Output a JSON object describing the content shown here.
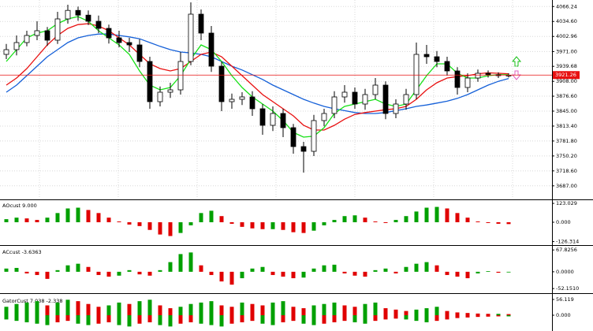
{
  "chart_data": [
    {
      "type": "candlestick",
      "open": [
        3965,
        3975,
        3990,
        4005,
        4015,
        3995,
        4040,
        4058,
        4048,
        4035,
        4020,
        4000,
        3990,
        3985,
        3950,
        3865,
        3885,
        3890,
        3950,
        4050,
        4010,
        3940,
        3865,
        3870,
        3875,
        3850,
        3815,
        3840,
        3810,
        3770,
        3760,
        3825,
        3840,
        3875,
        3885,
        3860,
        3880,
        3900,
        3840,
        3860,
        3880,
        3965,
        3960,
        3950,
        3930,
        3895,
        3915,
        3925,
        3922,
        3920
      ],
      "high": [
        3987,
        4005,
        4015,
        4035,
        4023,
        4055,
        4070,
        4066,
        4058,
        4047,
        4028,
        4015,
        4000,
        3997,
        3960,
        3897,
        3905,
        3970,
        4075,
        4060,
        4025,
        3950,
        3882,
        3885,
        3887,
        3860,
        3855,
        3850,
        3818,
        3780,
        3837,
        3850,
        3887,
        3900,
        3895,
        3892,
        3915,
        3908,
        3870,
        3892,
        3990,
        3985,
        3972,
        3960,
        3938,
        3925,
        3933,
        3931,
        3927,
        3925
      ],
      "low": [
        3955,
        3963,
        3982,
        3995,
        3983,
        3987,
        4030,
        4036,
        4027,
        4010,
        3988,
        3980,
        3970,
        3938,
        3850,
        3855,
        3873,
        3880,
        3942,
        3995,
        3928,
        3845,
        3850,
        3858,
        3835,
        3795,
        3803,
        3790,
        3755,
        3715,
        3750,
        3813,
        3830,
        3863,
        3850,
        3848,
        3870,
        3828,
        3830,
        3848,
        3870,
        3945,
        3938,
        3920,
        3880,
        3885,
        3907,
        3916,
        3915,
        3916
      ],
      "close": [
        3975,
        3990,
        4005,
        4015,
        3995,
        4040,
        4058,
        4048,
        4035,
        4020,
        4000,
        3990,
        3985,
        3950,
        3865,
        3885,
        3890,
        3950,
        4050,
        4010,
        3940,
        3865,
        3870,
        3875,
        3850,
        3815,
        3840,
        3810,
        3770,
        3760,
        3825,
        3840,
        3875,
        3885,
        3860,
        3880,
        3900,
        3840,
        3860,
        3880,
        3965,
        3960,
        3950,
        3930,
        3895,
        3915,
        3925,
        3922,
        3920,
        3921
      ],
      "up_color": "#ffffff",
      "down_color": "#000000",
      "series": [
        {
          "color": "#1560d8",
          "values": [
            3885,
            3900,
            3920,
            3940,
            3960,
            3975,
            3990,
            4000,
            4005,
            4008,
            4008,
            4005,
            4002,
            3998,
            3990,
            3982,
            3975,
            3970,
            3968,
            3965,
            3960,
            3950,
            3940,
            3932,
            3922,
            3912,
            3900,
            3890,
            3880,
            3870,
            3862,
            3855,
            3850,
            3846,
            3842,
            3840,
            3840,
            3842,
            3846,
            3850,
            3855,
            3858,
            3862,
            3866,
            3872,
            3880,
            3890,
            3900,
            3908,
            3914
          ]
        },
        {
          "color": "#e81010",
          "values": [
            3900,
            3915,
            3935,
            3960,
            3985,
            4005,
            4020,
            4028,
            4030,
            4025,
            4015,
            4000,
            3985,
            3965,
            3945,
            3935,
            3930,
            3935,
            3950,
            3965,
            3970,
            3960,
            3940,
            3920,
            3900,
            3880,
            3865,
            3850,
            3835,
            3815,
            3805,
            3805,
            3815,
            3828,
            3838,
            3842,
            3845,
            3848,
            3850,
            3855,
            3870,
            3890,
            3905,
            3915,
            3918,
            3920,
            3924,
            3926,
            3925,
            3924
          ]
        },
        {
          "color": "#16e016",
          "values": [
            3950,
            3975,
            4000,
            4010,
            4015,
            4030,
            4040,
            4045,
            4035,
            4015,
            4000,
            3985,
            3965,
            3930,
            3900,
            3890,
            3895,
            3920,
            3955,
            3985,
            3975,
            3950,
            3920,
            3895,
            3875,
            3860,
            3845,
            3825,
            3800,
            3790,
            3792,
            3810,
            3840,
            3855,
            3860,
            3865,
            3870,
            3860,
            3855,
            3860,
            3890,
            3920,
            3945,
            3945,
            3925,
            3915,
            3915,
            3920,
            3922,
            3922
          ]
        }
      ],
      "last_price": 3921.26,
      "last_price_color": "#e81010",
      "ylim": [
        3660,
        4080
      ],
      "yticks": [
        4066.24,
        {
          "value": 4034.6,
          "label": "4034.60"
        },
        4002.96,
        {
          "value": 3971,
          "label": "3971.00"
        },
        3939.68,
        {
          "value": 3908,
          "label": "3908.00"
        },
        {
          "value": 3876.6,
          "label": "3876.60"
        },
        {
          "value": 3845,
          "label": "3845.00"
        },
        {
          "value": 3813.4,
          "label": "3813.40"
        },
        {
          "value": 3781.8,
          "label": "3781.80"
        },
        {
          "value": 3750.2,
          "label": "3750.20"
        },
        {
          "value": 3718.6,
          "label": "3718.60"
        },
        {
          "value": 3687,
          "label": "3687.00"
        }
      ],
      "grid": true
    },
    {
      "type": "bar",
      "title": "AOcust 9.000",
      "values": [
        20,
        30,
        25,
        15,
        30,
        60,
        90,
        95,
        80,
        60,
        30,
        5,
        -15,
        -25,
        -50,
        -80,
        -90,
        -70,
        -20,
        60,
        75,
        40,
        -10,
        -30,
        -40,
        -45,
        -45,
        -50,
        -65,
        -70,
        -55,
        -20,
        15,
        40,
        45,
        30,
        5,
        -5,
        15,
        40,
        70,
        95,
        100,
        90,
        60,
        30,
        5,
        -5,
        -10,
        -12
      ],
      "up_color": "#00a000",
      "down_color": "#e00000",
      "ylim": [
        -144,
        144
      ],
      "yticks": [
        123.029,
        {
          "value": 0,
          "label": "0.000"
        },
        -126.314
      ]
    },
    {
      "type": "bar",
      "title": "ACcust -3.6363",
      "values": [
        10,
        12,
        -5,
        -10,
        -22,
        5,
        20,
        25,
        15,
        -10,
        -15,
        -12,
        5,
        -8,
        -12,
        5,
        30,
        55,
        60,
        20,
        -10,
        -30,
        -40,
        -20,
        10,
        15,
        -10,
        -15,
        -20,
        -18,
        10,
        20,
        22,
        -5,
        -12,
        -15,
        5,
        10,
        -5,
        15,
        25,
        30,
        20,
        -10,
        -15,
        -20,
        -5,
        2,
        -3,
        -2
      ],
      "up_color": "#00a000",
      "down_color": "#e00000",
      "ylim": [
        -64,
        78
      ],
      "yticks": [
        67.8256,
        {
          "value": 0,
          "label": "0.0000"
        },
        {
          "value": -52.151,
          "label": "-52.1510"
        }
      ]
    },
    {
      "type": "gator",
      "title": "GatorCust 7.038 -2.338",
      "upper": [
        30,
        40,
        45,
        50,
        35,
        45,
        55,
        50,
        40,
        30,
        35,
        45,
        40,
        50,
        55,
        35,
        25,
        30,
        40,
        45,
        50,
        35,
        30,
        45,
        40,
        35,
        45,
        50,
        30,
        25,
        35,
        40,
        45,
        35,
        30,
        40,
        45,
        25,
        20,
        15,
        20,
        25,
        30,
        15,
        10,
        8,
        6,
        5,
        5,
        4
      ],
      "lower": [
        -15,
        -20,
        -25,
        -30,
        -35,
        -25,
        -20,
        -30,
        -35,
        -30,
        -25,
        -35,
        -40,
        -30,
        -25,
        -35,
        -40,
        -30,
        -25,
        -30,
        -35,
        -40,
        -30,
        -25,
        -20,
        -30,
        -35,
        -25,
        -20,
        -30,
        -35,
        -30,
        -25,
        -20,
        -25,
        -30,
        -20,
        -15,
        -12,
        -15,
        -20,
        -25,
        -20,
        -15,
        -10,
        -8,
        -6,
        -5,
        -4,
        -4
      ],
      "up_color": "#00a000",
      "down_color": "#e00000",
      "ylim": [
        -56,
        70
      ],
      "yticks": [
        56.119,
        {
          "value": 0,
          "label": "0.000"
        }
      ]
    }
  ]
}
